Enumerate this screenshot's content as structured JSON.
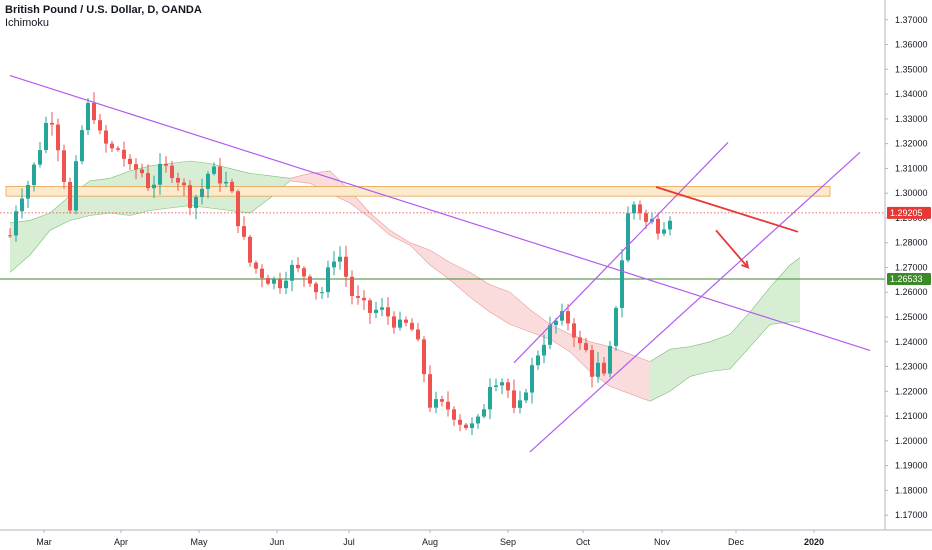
{
  "header": {
    "symbol_title": "British Pound / U.S. Dollar, D, OANDA",
    "indicator": "Ichimoku"
  },
  "colors": {
    "up_candle": "#26a69a",
    "down_candle": "#ef5350",
    "trendline": "#b15cf0",
    "resistance_zone_fill": "#fde9cc",
    "resistance_zone_border": "#e6a34d",
    "support_line": "#3b8a2a",
    "current_price_line": "#e53935",
    "projection": "#e53935",
    "kumo_bull": "#c9e8c6",
    "kumo_bear": "#f9d0d0"
  },
  "chart_data": {
    "type": "candlestick",
    "title": "British Pound / U.S. Dollar, D, OANDA",
    "indicators": [
      "Ichimoku"
    ],
    "x_labels": [
      "Mar",
      "Apr",
      "May",
      "Jun",
      "Jul",
      "Aug",
      "Sep",
      "Oct",
      "Nov",
      "Dec",
      "2020"
    ],
    "y_ticks": [
      "1.17000",
      "1.18000",
      "1.19000",
      "1.20000",
      "1.21000",
      "1.22000",
      "1.23000",
      "1.24000",
      "1.25000",
      "1.26000",
      "1.27000",
      "1.28000",
      "1.29000",
      "1.30000",
      "1.31000",
      "1.32000",
      "1.33000",
      "1.34000",
      "1.35000",
      "1.36000",
      "1.37000"
    ],
    "ylim": [
      1.164,
      1.378
    ],
    "grid": false,
    "current_price": {
      "value": 1.29205,
      "label": "1.29205"
    },
    "support_level": {
      "value": 1.26533,
      "label": "1.26533"
    },
    "resistance_zone": {
      "low": 1.2988,
      "high": 1.3027
    },
    "price_path": [
      [
        0,
        1.283
      ],
      [
        4,
        1.298
      ],
      [
        10,
        1.305
      ],
      [
        15,
        1.319
      ],
      [
        20,
        1.334
      ],
      [
        25,
        1.316
      ],
      [
        30,
        1.292
      ],
      [
        35,
        1.322
      ],
      [
        40,
        1.338
      ],
      [
        45,
        1.323
      ],
      [
        50,
        1.317
      ],
      [
        55,
        1.318
      ],
      [
        60,
        1.309
      ],
      [
        65,
        1.31
      ],
      [
        70,
        1.302
      ],
      [
        75,
        1.309
      ],
      [
        80,
        1.31
      ],
      [
        85,
        1.305
      ],
      [
        90,
        1.297
      ],
      [
        95,
        1.3
      ],
      [
        100,
        1.31
      ],
      [
        105,
        1.306
      ],
      [
        110,
        1.302
      ],
      [
        115,
        1.286
      ],
      [
        120,
        1.272
      ],
      [
        125,
        1.268
      ],
      [
        130,
        1.265
      ],
      [
        135,
        1.264
      ],
      [
        140,
        1.27
      ],
      [
        145,
        1.268
      ],
      [
        150,
        1.266
      ],
      [
        155,
        1.258
      ],
      [
        160,
        1.27
      ],
      [
        163,
        1.277
      ],
      [
        166,
        1.273
      ],
      [
        170,
        1.26
      ],
      [
        175,
        1.255
      ],
      [
        180,
        1.252
      ],
      [
        185,
        1.253
      ],
      [
        190,
        1.25
      ],
      [
        195,
        1.246
      ],
      [
        200,
        1.247
      ],
      [
        205,
        1.236
      ],
      [
        210,
        1.215
      ],
      [
        215,
        1.214
      ],
      [
        220,
        1.213
      ],
      [
        225,
        1.208
      ],
      [
        230,
        1.205
      ],
      [
        235,
        1.208
      ],
      [
        240,
        1.224
      ],
      [
        245,
        1.226
      ],
      [
        250,
        1.219
      ],
      [
        253,
        1.207
      ],
      [
        256,
        1.217
      ],
      [
        260,
        1.227
      ],
      [
        265,
        1.238
      ],
      [
        270,
        1.245
      ],
      [
        275,
        1.25
      ],
      [
        280,
        1.248
      ],
      [
        285,
        1.238
      ],
      [
        288,
        1.236
      ],
      [
        291,
        1.228
      ],
      [
        294,
        1.23
      ],
      [
        297,
        1.225
      ],
      [
        300,
        1.236
      ],
      [
        305,
        1.268
      ],
      [
        310,
        1.297
      ],
      [
        313,
        1.295
      ],
      [
        316,
        1.292
      ],
      [
        319,
        1.286
      ],
      [
        322,
        1.29
      ],
      [
        325,
        1.285
      ],
      [
        328,
        1.29
      ],
      [
        331,
        1.292
      ]
    ],
    "kumo_segments": [
      {
        "polarity": "bull",
        "top": [
          [
            0,
            1.288
          ],
          [
            10,
            1.289
          ],
          [
            20,
            1.292
          ],
          [
            30,
            1.299
          ],
          [
            40,
            1.305
          ],
          [
            50,
            1.306
          ],
          [
            60,
            1.309
          ],
          [
            70,
            1.311
          ],
          [
            80,
            1.312
          ],
          [
            90,
            1.313
          ],
          [
            100,
            1.312
          ],
          [
            110,
            1.31
          ],
          [
            120,
            1.308
          ],
          [
            130,
            1.307
          ],
          [
            140,
            1.306
          ]
        ],
        "bottom": [
          [
            0,
            1.268
          ],
          [
            10,
            1.275
          ],
          [
            20,
            1.285
          ],
          [
            30,
            1.289
          ],
          [
            40,
            1.291
          ],
          [
            50,
            1.292
          ],
          [
            60,
            1.291
          ],
          [
            70,
            1.293
          ],
          [
            80,
            1.294
          ],
          [
            90,
            1.295
          ],
          [
            100,
            1.294
          ],
          [
            110,
            1.293
          ],
          [
            120,
            1.292
          ],
          [
            130,
            1.298
          ],
          [
            140,
            1.305
          ]
        ]
      },
      {
        "polarity": "bear",
        "top": [
          [
            140,
            1.306
          ],
          [
            150,
            1.308
          ],
          [
            160,
            1.309
          ],
          [
            170,
            1.301
          ],
          [
            180,
            1.292
          ],
          [
            190,
            1.285
          ],
          [
            200,
            1.28
          ],
          [
            210,
            1.277
          ],
          [
            220,
            1.272
          ],
          [
            230,
            1.268
          ],
          [
            240,
            1.263
          ],
          [
            250,
            1.26
          ],
          [
            260,
            1.253
          ],
          [
            270,
            1.247
          ],
          [
            280,
            1.243
          ],
          [
            290,
            1.24
          ],
          [
            300,
            1.238
          ],
          [
            310,
            1.235
          ],
          [
            320,
            1.232
          ]
        ],
        "bottom": [
          [
            140,
            1.305
          ],
          [
            150,
            1.304
          ],
          [
            160,
            1.3
          ],
          [
            170,
            1.296
          ],
          [
            180,
            1.29
          ],
          [
            190,
            1.283
          ],
          [
            200,
            1.279
          ],
          [
            210,
            1.271
          ],
          [
            220,
            1.265
          ],
          [
            230,
            1.258
          ],
          [
            240,
            1.252
          ],
          [
            250,
            1.247
          ],
          [
            260,
            1.244
          ],
          [
            270,
            1.241
          ],
          [
            280,
            1.236
          ],
          [
            290,
            1.228
          ],
          [
            300,
            1.222
          ],
          [
            310,
            1.219
          ],
          [
            320,
            1.216
          ]
        ]
      },
      {
        "polarity": "bull",
        "top": [
          [
            320,
            1.232
          ],
          [
            330,
            1.237
          ],
          [
            340,
            1.238
          ],
          [
            350,
            1.24
          ],
          [
            360,
            1.243
          ],
          [
            370,
            1.252
          ],
          [
            380,
            1.262
          ],
          [
            390,
            1.271
          ],
          [
            395,
            1.274
          ]
        ],
        "bottom": [
          [
            320,
            1.216
          ],
          [
            330,
            1.22
          ],
          [
            340,
            1.226
          ],
          [
            350,
            1.228
          ],
          [
            360,
            1.229
          ],
          [
            370,
            1.238
          ],
          [
            380,
            1.247
          ],
          [
            390,
            1.248
          ],
          [
            395,
            1.248
          ]
        ]
      }
    ],
    "trendlines": [
      {
        "name": "descending",
        "start": [
          0,
          1.3475
        ],
        "end": [
          430,
          1.2365
        ]
      },
      {
        "name": "channel-lower",
        "start": [
          260,
          1.1955
        ],
        "end": [
          425,
          1.3165
        ]
      },
      {
        "name": "channel-upper",
        "start": [
          252,
          1.2315
        ],
        "end": [
          359,
          1.3205
        ]
      }
    ],
    "projection": {
      "line": {
        "start": [
          323,
          1.3025
        ],
        "end": [
          394,
          1.2844
        ]
      },
      "arrow": {
        "start": [
          353,
          1.285
        ],
        "end": [
          369,
          1.27
        ]
      }
    }
  }
}
